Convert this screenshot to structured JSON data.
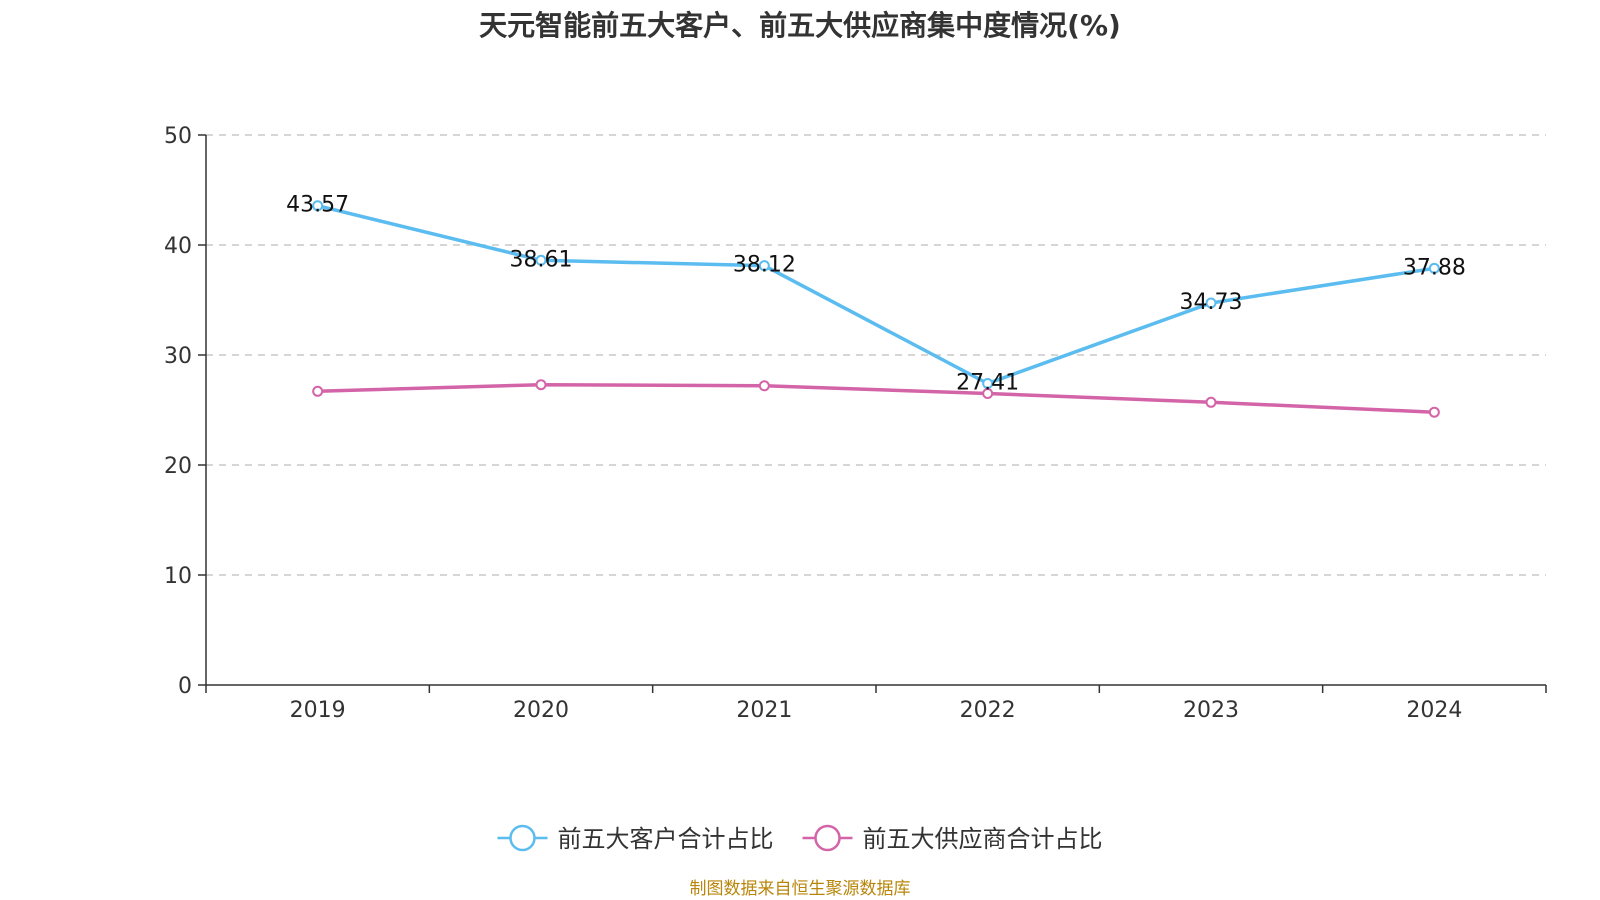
{
  "title": "天元智能前五大客户、前五大供应商集中度情况(%)",
  "source": "制图数据来自恒生聚源数据库",
  "chart_data": {
    "type": "line",
    "title": "天元智能前五大客户、前五大供应商集中度情况(%)",
    "categories": [
      "2019",
      "2020",
      "2021",
      "2022",
      "2023",
      "2024"
    ],
    "ylim": [
      0,
      50
    ],
    "yticks": [
      "0",
      "10",
      "20",
      "30",
      "40",
      "50"
    ],
    "grid": true,
    "legend_position": "bottom",
    "series": [
      {
        "name": "前五大客户合计占比",
        "color": "#5bbcf0",
        "values": [
          43.57,
          38.61,
          38.12,
          27.41,
          34.73,
          37.88
        ],
        "labels": [
          "43.57",
          "38.61",
          "38.12",
          "27.41",
          "34.73",
          "37.88"
        ]
      },
      {
        "name": "前五大供应商合计占比",
        "color": "#d464a8",
        "values": [
          26.7,
          27.3,
          27.2,
          26.5,
          25.7,
          24.8
        ]
      }
    ]
  }
}
